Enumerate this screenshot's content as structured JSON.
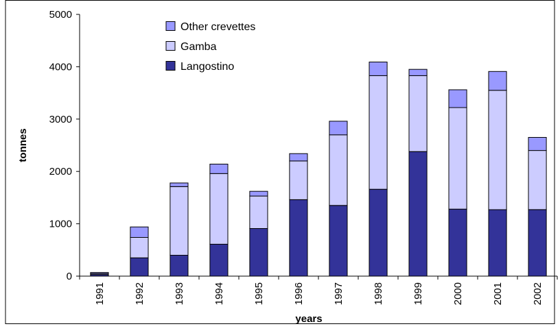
{
  "chart_data": {
    "type": "bar",
    "stacked": true,
    "title": "",
    "xlabel": "years",
    "ylabel": "tonnes",
    "ylim": [
      0,
      5000
    ],
    "yticks": [
      "0",
      "1000",
      "2000",
      "3000",
      "4000",
      "5000"
    ],
    "categories": [
      "1991",
      "1992",
      "1993",
      "1994",
      "1995",
      "1996",
      "1997",
      "1998",
      "1999",
      "2000",
      "2001",
      "2002"
    ],
    "series": [
      {
        "name": "Langostino",
        "color": "#333399",
        "values": [
          30,
          350,
          400,
          610,
          910,
          1460,
          1350,
          1660,
          2380,
          1280,
          1270,
          1270
        ]
      },
      {
        "name": "Gamba",
        "color": "#ccccff",
        "values": [
          20,
          390,
          1310,
          1350,
          620,
          740,
          1350,
          2170,
          1450,
          1940,
          2280,
          1130
        ]
      },
      {
        "name": "Other crevettes",
        "color": "#9999ff",
        "values": [
          20,
          200,
          70,
          180,
          90,
          140,
          260,
          260,
          120,
          340,
          360,
          250
        ]
      }
    ],
    "legend": {
      "position": "top-left",
      "order": [
        "Other crevettes",
        "Gamba",
        "Langostino"
      ]
    },
    "grid": false
  }
}
